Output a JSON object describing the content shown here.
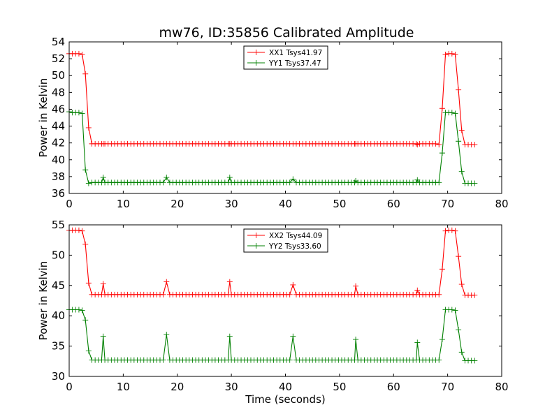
{
  "figure": {
    "title": "mw76, ID:35856 Calibrated Amplitude"
  },
  "chart_data": [
    {
      "type": "line",
      "title": "mw76, ID:35856 Calibrated Amplitude",
      "xlabel": "",
      "ylabel": "Power in Kelvin",
      "xlim": [
        0,
        80
      ],
      "ylim": [
        36,
        54
      ],
      "x_ticks": [
        0,
        10,
        20,
        30,
        40,
        50,
        60,
        70,
        80
      ],
      "y_ticks": [
        36,
        38,
        40,
        42,
        44,
        46,
        48,
        50,
        52,
        54
      ],
      "grid": false,
      "legend_position": "top-center",
      "x": [
        0,
        0.6,
        1.2,
        1.8,
        2.4,
        3.0,
        3.6,
        6.3,
        18.0,
        29.7,
        41.4,
        53.0,
        64.4,
        68.4,
        69.0,
        69.6,
        70.2,
        70.8,
        71.4,
        72.0,
        72.6,
        75
      ],
      "series": [
        {
          "name": "XX1 Tsys41.97",
          "color": "#ff0000",
          "marker": "+",
          "base": 41.9,
          "values": [
            52.6,
            52.6,
            52.6,
            52.6,
            52.5,
            50.2,
            43.8,
            41.9,
            41.9,
            41.9,
            41.9,
            41.9,
            41.8,
            41.8,
            46.1,
            52.5,
            52.6,
            52.6,
            52.5,
            48.3,
            43.5,
            41.8
          ],
          "spikes": []
        },
        {
          "name": "YY1 Tsys37.47",
          "color": "#008000",
          "marker": "+",
          "base": 37.3,
          "values": [
            45.7,
            45.6,
            45.6,
            45.6,
            45.5,
            38.8,
            37.2,
            37.3,
            37.3,
            37.3,
            37.3,
            37.3,
            37.3,
            37.3,
            40.8,
            45.6,
            45.6,
            45.6,
            45.5,
            42.2,
            38.6,
            37.2
          ],
          "spikes": [
            [
              6.3,
              37.9
            ],
            [
              18.0,
              37.9
            ],
            [
              29.7,
              37.9
            ],
            [
              41.4,
              37.7
            ],
            [
              53.0,
              37.5
            ],
            [
              64.4,
              37.6
            ]
          ]
        }
      ]
    },
    {
      "type": "line",
      "title": "",
      "xlabel": "Time (seconds)",
      "ylabel": "Power in Kelvin",
      "xlim": [
        0,
        80
      ],
      "ylim": [
        30,
        55
      ],
      "x_ticks": [
        0,
        10,
        20,
        30,
        40,
        50,
        60,
        70,
        80
      ],
      "y_ticks": [
        30,
        35,
        40,
        45,
        50,
        55
      ],
      "grid": false,
      "legend_position": "top-center",
      "x": [
        0,
        0.6,
        1.2,
        1.8,
        2.4,
        3.0,
        3.6,
        6.3,
        18.0,
        29.7,
        41.4,
        53.0,
        64.4,
        68.4,
        69.0,
        69.6,
        70.2,
        70.8,
        71.4,
        72.0,
        72.6,
        75
      ],
      "series": [
        {
          "name": "XX2 Tsys44.09",
          "color": "#ff0000",
          "marker": "+",
          "base": 43.5,
          "values": [
            54.1,
            54.1,
            54.1,
            54.1,
            54.0,
            51.8,
            45.4,
            43.5,
            43.5,
            43.5,
            43.5,
            43.5,
            43.5,
            43.5,
            47.7,
            54.0,
            54.1,
            54.1,
            54.0,
            49.8,
            45.2,
            43.4
          ],
          "spikes": [
            [
              6.3,
              45.3
            ],
            [
              18.0,
              45.6
            ],
            [
              29.7,
              45.6
            ],
            [
              41.4,
              45.1
            ],
            [
              53.0,
              44.9
            ],
            [
              64.4,
              44.2
            ]
          ]
        },
        {
          "name": "YY2 Tsys33.60",
          "color": "#008000",
          "marker": "+",
          "base": 32.7,
          "values": [
            41.0,
            41.0,
            41.0,
            41.0,
            40.9,
            39.3,
            34.2,
            32.7,
            32.7,
            32.7,
            32.7,
            32.7,
            32.7,
            32.7,
            36.1,
            41.0,
            41.0,
            41.0,
            40.9,
            37.7,
            34.0,
            32.6
          ],
          "spikes": [
            [
              6.3,
              36.6
            ],
            [
              18.0,
              36.9
            ],
            [
              29.7,
              36.6
            ],
            [
              41.4,
              36.6
            ],
            [
              53.0,
              36.1
            ],
            [
              64.4,
              35.6
            ]
          ]
        }
      ]
    }
  ]
}
